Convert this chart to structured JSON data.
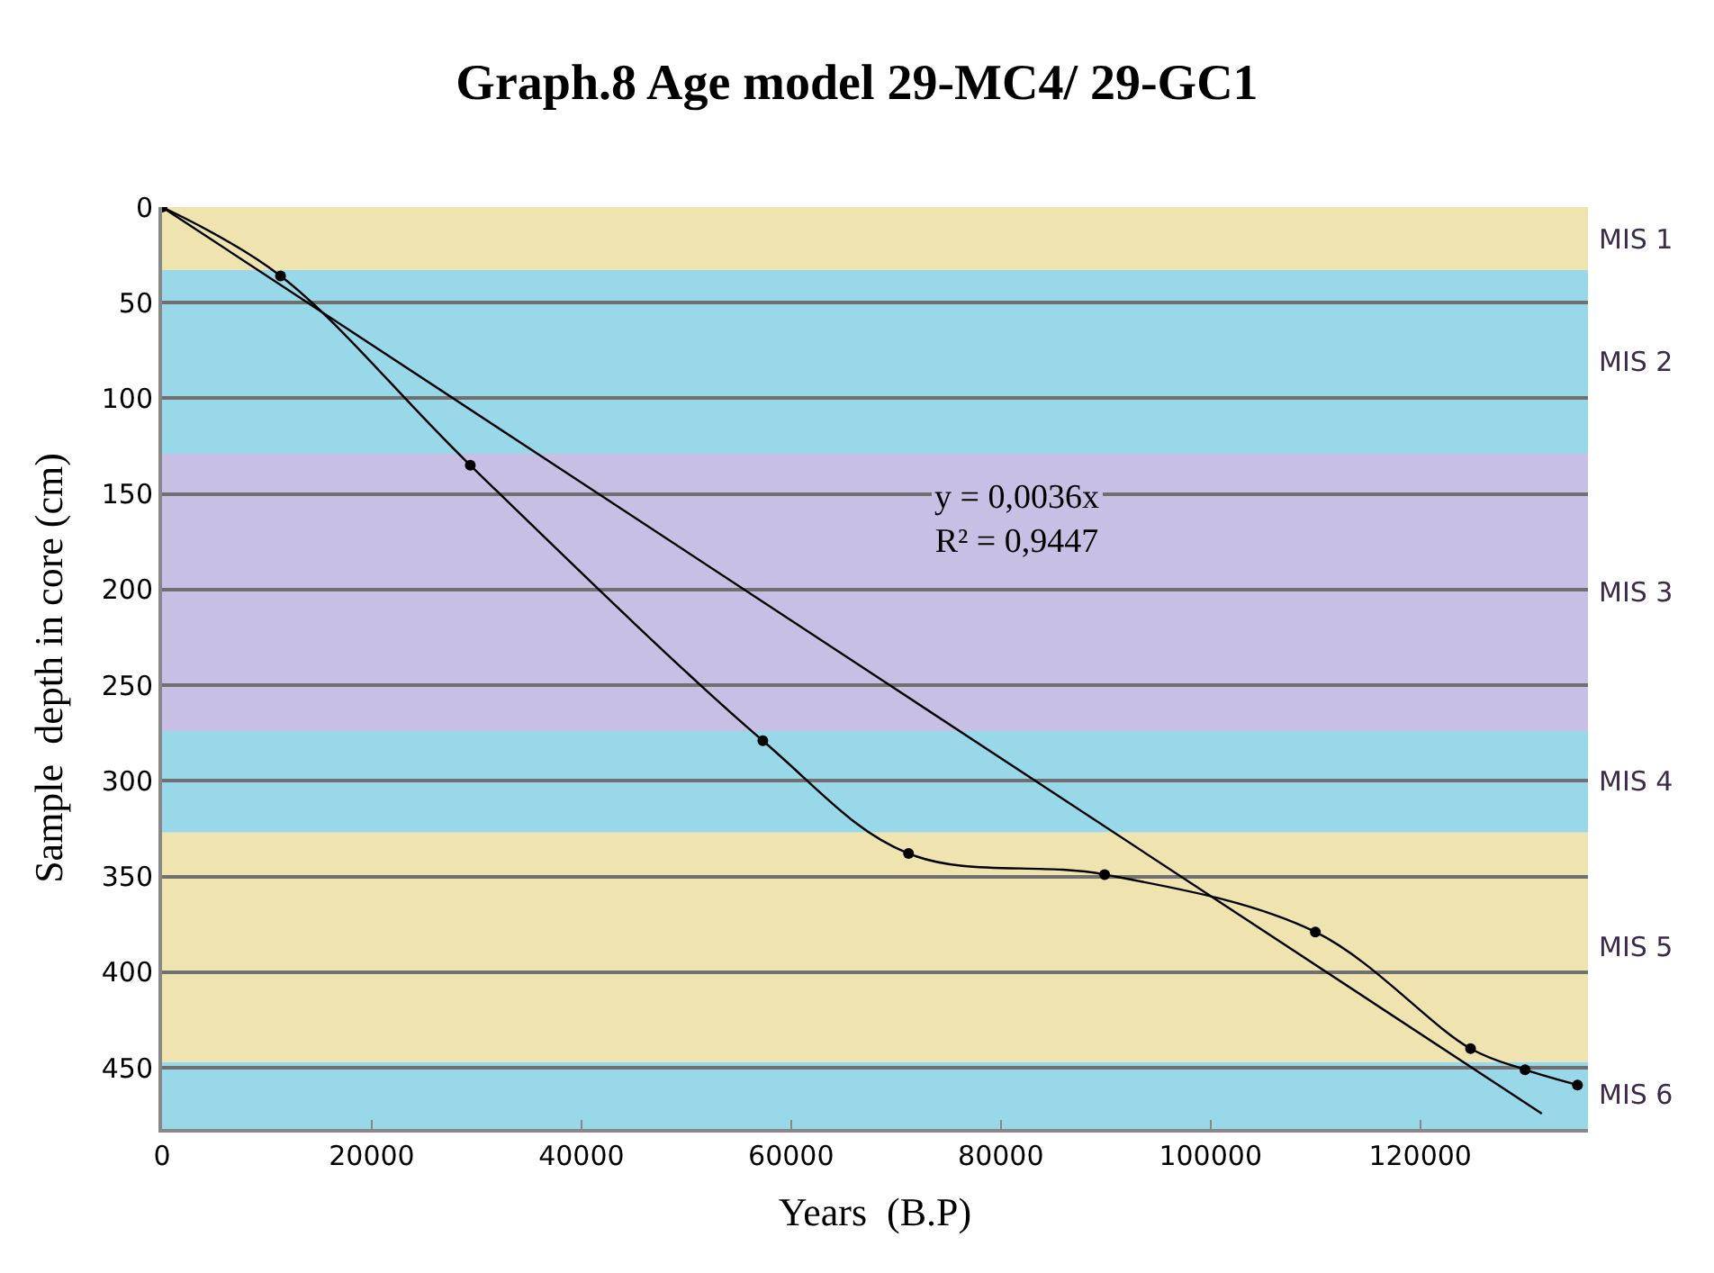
{
  "chart_data": {
    "type": "line",
    "title": "Graph.8 Age model 29-MC4/ 29-GC1",
    "xlabel": "Years  (B.P)",
    "ylabel": "Sample  depth in core (cm)",
    "series": [
      {
        "color": "#000000",
        "marker": "circle",
        "x": [
          0,
          11300,
          29400,
          57300,
          71200,
          89900,
          110000,
          124800,
          130000,
          135000
        ],
        "values": [
          0,
          36,
          135,
          279,
          338,
          349,
          379,
          440,
          451,
          459
        ]
      },
      {
        "type": "line",
        "color": "#000000",
        "marker": "none",
        "x": [
          0,
          131600
        ],
        "values": [
          0,
          474
        ]
      }
    ],
    "xlim": [
      0,
      136000
    ],
    "xticks": [
      0,
      20000,
      40000,
      60000,
      80000,
      100000,
      120000
    ],
    "ylim": [
      482,
      0
    ],
    "yticks": [
      0,
      50,
      100,
      150,
      200,
      250,
      300,
      350,
      400,
      450
    ],
    "grid": "y",
    "bands": [
      {
        "axis": "y",
        "from": 0,
        "to": 33,
        "label": "MIS 1",
        "color": "#efe3b0"
      },
      {
        "axis": "y",
        "from": 33,
        "to": 129,
        "label": "MIS 2",
        "color": "#98d8e8"
      },
      {
        "axis": "y",
        "from": 129,
        "to": 274,
        "label": "MIS 3",
        "color": "#c8bfe4"
      },
      {
        "axis": "y",
        "from": 274,
        "to": 327,
        "label": "MIS 4",
        "color": "#98d8e8"
      },
      {
        "axis": "y",
        "from": 327,
        "to": 447,
        "label": "MIS 5",
        "color": "#efe3b0"
      },
      {
        "axis": "y",
        "from": 447,
        "to": 482,
        "label": "MIS 6",
        "color": "#98d8e8"
      }
    ],
    "annotations": [
      "y = 0,0036x\nR² = 0,9447"
    ]
  }
}
